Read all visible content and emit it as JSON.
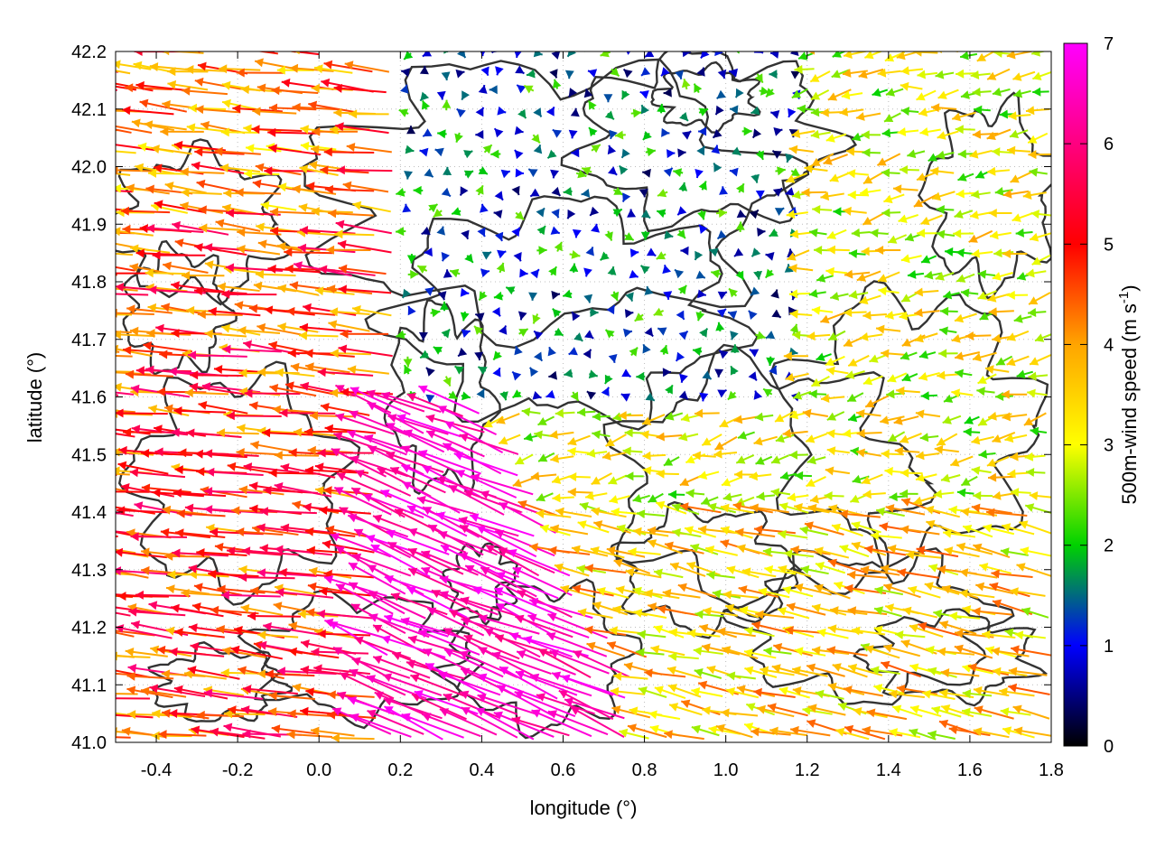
{
  "chart_data": {
    "type": "quiver",
    "title": "",
    "xlabel": "longitude (°)",
    "ylabel": "latitude (°)",
    "xlim": [
      -0.5,
      1.8
    ],
    "ylim": [
      41.0,
      42.2
    ],
    "x_ticks": [
      "-0.4",
      "-0.2",
      "0.0",
      "0.2",
      "0.4",
      "0.6",
      "0.8",
      "1.0",
      "1.2",
      "1.4",
      "1.6",
      "1.8"
    ],
    "y_ticks": [
      "41.0",
      "41.1",
      "41.2",
      "41.3",
      "41.4",
      "41.5",
      "41.6",
      "41.7",
      "41.8",
      "41.9",
      "42.0",
      "42.1",
      "42.2"
    ],
    "grid": true,
    "colorbar": {
      "label_main": "500m-wind speed (m s",
      "label_sup": "-1",
      "label_end": ")",
      "range": [
        0,
        7
      ],
      "ticks": [
        "0",
        "1",
        "2",
        "3",
        "4",
        "5",
        "6",
        "7"
      ],
      "colors": [
        "#000000",
        "#0000ff",
        "#00d200",
        "#ffff00",
        "#ffa500",
        "#ff0000",
        "#ff00ff"
      ]
    },
    "wind_field_regions": [
      {
        "region": "west",
        "lon_range": [
          -0.5,
          0.2
        ],
        "lat_range": [
          41.0,
          42.2
        ],
        "direction": "from east, pointing west-northwest",
        "speed_range": [
          3.5,
          6.0
        ]
      },
      {
        "region": "central-south",
        "lon_range": [
          0.1,
          0.8
        ],
        "lat_range": [
          41.0,
          41.6
        ],
        "direction": "pointing northwest",
        "speed_range": [
          6.0,
          7.0
        ]
      },
      {
        "region": "north-center",
        "lon_range": [
          0.3,
          1.2
        ],
        "lat_range": [
          41.6,
          42.2
        ],
        "direction": "variable, weak",
        "speed_range": [
          0.3,
          2.5
        ]
      },
      {
        "region": "east",
        "lon_range": [
          1.2,
          1.8
        ],
        "lat_range": [
          41.4,
          42.2
        ],
        "direction": "pointing west to southwest",
        "speed_range": [
          2.0,
          4.0
        ]
      },
      {
        "region": "southeast",
        "lon_range": [
          0.8,
          1.8
        ],
        "lat_range": [
          41.0,
          41.4
        ],
        "direction": "pointing west-northwest",
        "speed_range": [
          2.5,
          4.5
        ]
      }
    ]
  }
}
